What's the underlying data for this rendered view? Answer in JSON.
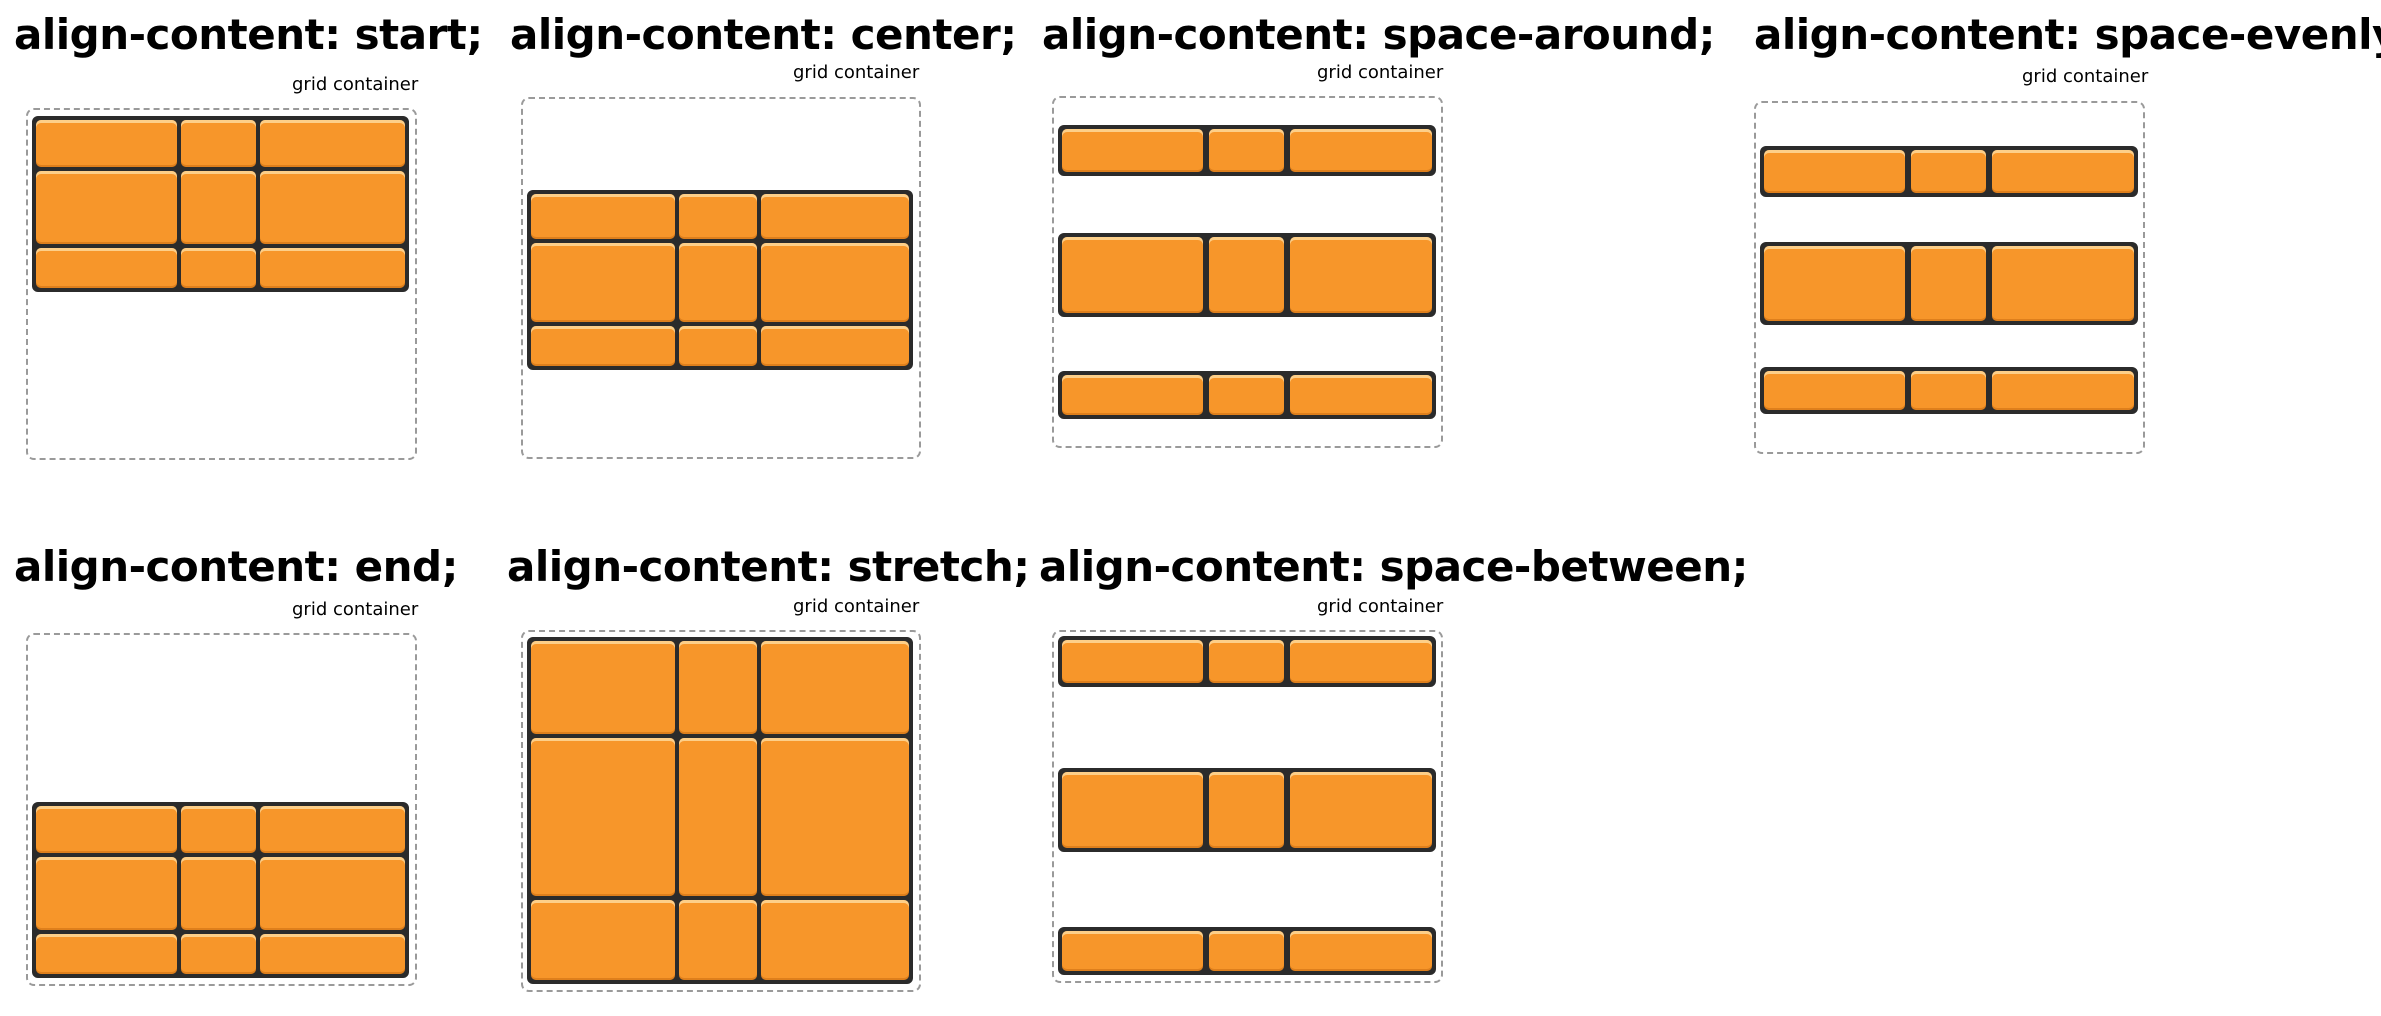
{
  "panels": [
    {
      "id": "start",
      "title": "align-content: start;",
      "container_label": "grid container",
      "value": "start"
    },
    {
      "id": "center",
      "title": "align-content: center;",
      "container_label": "grid container",
      "value": "center"
    },
    {
      "id": "space-around",
      "title": "align-content: space-around;",
      "container_label": "grid container",
      "value": "space-around"
    },
    {
      "id": "space-evenly",
      "title": "align-content: space-evenly;",
      "container_label": "grid container",
      "value": "space-evenly"
    },
    {
      "id": "end",
      "title": "align-content: end;",
      "container_label": "grid container",
      "value": "end"
    },
    {
      "id": "stretch",
      "title": "align-content: stretch;",
      "container_label": "grid container",
      "value": "stretch"
    },
    {
      "id": "space-between",
      "title": "align-content: space-between;",
      "container_label": "grid container",
      "value": "space-between"
    }
  ],
  "colors": {
    "item_fill": "#f7962a",
    "item_border": "#2b2b2b",
    "container_border": "#9a9a9a"
  }
}
